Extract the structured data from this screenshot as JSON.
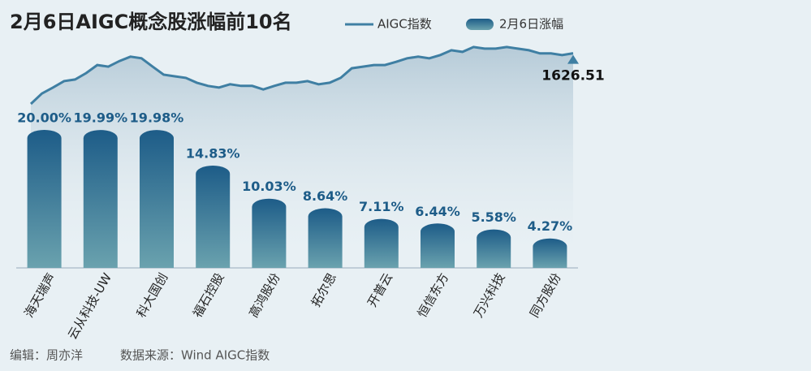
{
  "chart_data": [
    {
      "type": "bar",
      "title": "2月6日AIGC概念股涨幅前10名",
      "name": "2月6日涨幅",
      "categories": [
        "海天瑞声",
        "云从科技-UW",
        "科大国创",
        "福石控股",
        "高鸿股份",
        "拓尔思",
        "开普云",
        "恒信东方",
        "万兴科技",
        "同方股份"
      ],
      "values": [
        20.0,
        19.99,
        19.98,
        14.83,
        10.03,
        8.64,
        7.11,
        6.44,
        5.58,
        4.27
      ],
      "value_labels": [
        "20.00%",
        "19.99%",
        "19.98%",
        "14.83%",
        "10.03%",
        "8.64%",
        "7.11%",
        "6.44%",
        "5.58%",
        "4.27%"
      ],
      "ylim": [
        0,
        20
      ],
      "color": "#1d5c88"
    },
    {
      "type": "line",
      "name": "AIGC指数",
      "values": [
        1500,
        1526,
        1541,
        1557,
        1561,
        1577,
        1597,
        1593,
        1607,
        1618,
        1614,
        1593,
        1573,
        1569,
        1565,
        1553,
        1545,
        1541,
        1549,
        1545,
        1545,
        1536,
        1545,
        1553,
        1553,
        1557,
        1549,
        1553,
        1565,
        1589,
        1593,
        1597,
        1597,
        1605,
        1614,
        1618,
        1614,
        1622,
        1634,
        1630,
        1642,
        1638,
        1638,
        1642,
        1638,
        1634,
        1626,
        1626,
        1622,
        1626.51
      ],
      "ylim": [
        1500,
        1650
      ],
      "color": "#3f7fa3"
    }
  ],
  "footer": {
    "editor": "编辑：周亦洋",
    "source": "数据来源：Wind AIGC指数"
  }
}
